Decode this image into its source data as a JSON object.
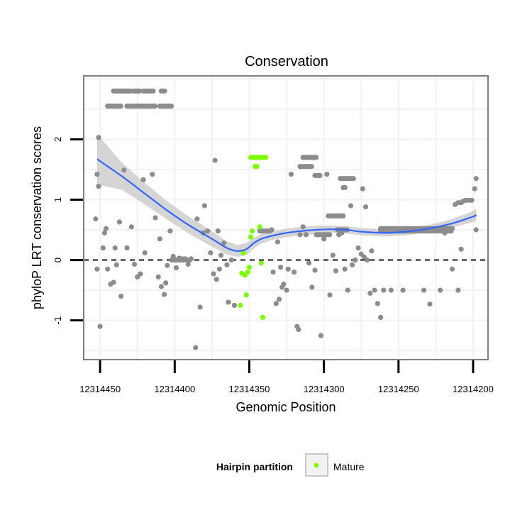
{
  "chart_data": {
    "type": "scatter",
    "title": "Conservation",
    "xlabel": "Genomic Position",
    "ylabel": "phyloP LRT conservation scores",
    "x_reversed": true,
    "xlim": [
      12314461,
      12314190
    ],
    "ylim": [
      -1.65,
      3.05
    ],
    "x_ticks": [
      12314450,
      12314400,
      12314350,
      12314300,
      12314250,
      12314200
    ],
    "x_tick_labels": [
      "12314450",
      "12314400",
      "12314350",
      "12314300",
      "12314250",
      "12314200"
    ],
    "y_ticks": [
      -1,
      0,
      1,
      2
    ],
    "y_tick_labels": [
      "-1",
      "0",
      "1",
      "2"
    ],
    "reference_line_y": 0,
    "legend": {
      "title": "Hairpin partition",
      "position": "bottom",
      "entries": [
        {
          "label": "Mature",
          "color": "#7cfc00"
        }
      ]
    },
    "colors": {
      "other": "#8c8c8c",
      "mature": "#7cfc00",
      "smooth": "#3366ff",
      "band": "#d0d0d0",
      "panel_border": "#7f7f7f",
      "grid": "#f2f2f2"
    },
    "series": [
      {
        "name": "Other",
        "points": [
          [
            12314451,
            2.03
          ],
          [
            12314452,
            1.42
          ],
          [
            12314451,
            1.22
          ],
          [
            12314453,
            0.68
          ],
          [
            12314452,
            -0.15
          ],
          [
            12314450,
            -1.1
          ],
          [
            12314448,
            0.2
          ],
          [
            12314447,
            0.45
          ],
          [
            12314446,
            0.52
          ],
          [
            12314445,
            -0.15
          ],
          [
            12314443,
            -0.4
          ],
          [
            12314441,
            -0.37
          ],
          [
            12314440,
            0.2
          ],
          [
            12314439,
            -0.08
          ],
          [
            12314437,
            0.63
          ],
          [
            12314436,
            -0.6
          ],
          [
            12314434,
            1.49
          ],
          [
            12314432,
            0.2
          ],
          [
            12314429,
            0.55
          ],
          [
            12314427,
            -0.07
          ],
          [
            12314425,
            -0.28
          ],
          [
            12314423,
            -0.23
          ],
          [
            12314421,
            1.33
          ],
          [
            12314420,
            0.12
          ],
          [
            12314415,
            1.42
          ],
          [
            12314413,
            0.7
          ],
          [
            12314411,
            -0.28
          ],
          [
            12314410,
            0.35
          ],
          [
            12314409,
            -0.44
          ],
          [
            12314407,
            -0.57
          ],
          [
            12314406,
            -0.38
          ],
          [
            12314405,
            -0.09
          ],
          [
            12314403,
            0.48
          ],
          [
            12314401,
            0.06
          ],
          [
            12314399,
            -0.13
          ],
          [
            12314397,
            0.03
          ],
          [
            12314395,
            0.02
          ],
          [
            12314393,
            0.02
          ],
          [
            12314391,
            -0.07
          ],
          [
            12314389,
            0.02
          ],
          [
            12314386,
            -1.45
          ],
          [
            12314385,
            0.68
          ],
          [
            12314383,
            -0.78
          ],
          [
            12314381,
            0.45
          ],
          [
            12314380,
            0.9
          ],
          [
            12314378,
            0.48
          ],
          [
            12314376,
            0.12
          ],
          [
            12314374,
            -0.23
          ],
          [
            12314373,
            1.65
          ],
          [
            12314372,
            -0.32
          ],
          [
            12314371,
            0.48
          ],
          [
            12314370,
            -0.15
          ],
          [
            12314369,
            0.08
          ],
          [
            12314367,
            0.28
          ],
          [
            12314365,
            -0.08
          ],
          [
            12314364,
            -0.7
          ],
          [
            12314362,
            0.0
          ],
          [
            12314360,
            -0.75
          ],
          [
            12314335,
            0.5
          ],
          [
            12314334,
            -0.2
          ],
          [
            12314332,
            -0.72
          ],
          [
            12314331,
            0.3
          ],
          [
            12314330,
            -0.65
          ],
          [
            12314329,
            -0.12
          ],
          [
            12314328,
            -0.45
          ],
          [
            12314327,
            -0.4
          ],
          [
            12314325,
            -0.5
          ],
          [
            12314324,
            -0.15
          ],
          [
            12314322,
            1.42
          ],
          [
            12314320,
            -0.2
          ],
          [
            12314318,
            -1.1
          ],
          [
            12314317,
            -1.15
          ],
          [
            12314316,
            0.42
          ],
          [
            12314314,
            0.55
          ],
          [
            12314312,
            0.42
          ],
          [
            12314310,
            -0.05
          ],
          [
            12314308,
            -0.45
          ],
          [
            12314306,
            -0.17
          ],
          [
            12314304,
            0.42
          ],
          [
            12314302,
            -1.25
          ],
          [
            12314300,
            0.35
          ],
          [
            12314298,
            1.42
          ],
          [
            12314296,
            -0.58
          ],
          [
            12314294,
            0.08
          ],
          [
            12314292,
            -0.18
          ],
          [
            12314290,
            0.42
          ],
          [
            12314288,
            0.45
          ],
          [
            12314286,
            -0.15
          ],
          [
            12314284,
            -0.5
          ],
          [
            12314282,
            0.9
          ],
          [
            12314281,
            -0.08
          ],
          [
            12314279,
            0.0
          ],
          [
            12314277,
            0.2
          ],
          [
            12314275,
            0.1
          ],
          [
            12314274,
            1.18
          ],
          [
            12314273,
            0.05
          ],
          [
            12314272,
            0.88
          ],
          [
            12314271,
            0.0
          ],
          [
            12314269,
            -0.55
          ],
          [
            12314268,
            0.15
          ],
          [
            12314266,
            -0.5
          ],
          [
            12314264,
            -0.72
          ],
          [
            12314262,
            -0.95
          ],
          [
            12314260,
            -0.5
          ],
          [
            12314255,
            -0.5
          ],
          [
            12314247,
            -0.5
          ],
          [
            12314233,
            -0.5
          ],
          [
            12314229,
            -0.73
          ],
          [
            12314222,
            -0.5
          ],
          [
            12314214,
            -0.15
          ],
          [
            12314210,
            -0.5
          ],
          [
            12314208,
            0.18
          ],
          [
            12314198,
            0.5
          ],
          [
            12314198,
            1.35
          ],
          [
            12314199,
            1.18
          ],
          [
            12314201,
            0.99
          ],
          [
            12314203,
            0.99
          ],
          [
            12314205,
            0.99
          ],
          [
            12314207,
            0.97
          ],
          [
            12314208,
            0.95
          ],
          [
            12314210,
            0.95
          ],
          [
            12314212,
            0.92
          ],
          [
            12314214,
            0.52
          ],
          [
            12314217,
            0.5
          ],
          [
            12314219,
            0.45
          ]
        ],
        "runs": [
          {
            "y": 2.8,
            "x_from": 12314441,
            "x_to": 12314430,
            "step": 1.1
          },
          {
            "y": 2.8,
            "x_from": 12314428,
            "x_to": 12314423,
            "step": 1.1
          },
          {
            "y": 2.8,
            "x_from": 12314421,
            "x_to": 12314414,
            "step": 1.1
          },
          {
            "y": 2.8,
            "x_from": 12314409,
            "x_to": 12314406,
            "step": 1.1
          },
          {
            "y": 2.55,
            "x_from": 12314445,
            "x_to": 12314436,
            "step": 1.1
          },
          {
            "y": 2.55,
            "x_from": 12314432,
            "x_to": 12314413,
            "step": 1.1
          },
          {
            "y": 2.55,
            "x_from": 12314410,
            "x_to": 12314402,
            "step": 1.1
          },
          {
            "y": 1.7,
            "x_from": 12314314,
            "x_to": 12314305,
            "step": 1.1
          },
          {
            "y": 1.55,
            "x_from": 12314316,
            "x_to": 12314308,
            "step": 1.1
          },
          {
            "y": 1.4,
            "x_from": 12314306,
            "x_to": 12314302,
            "step": 1.1
          },
          {
            "y": 1.35,
            "x_from": 12314289,
            "x_to": 12314280,
            "step": 1.1
          },
          {
            "y": 1.2,
            "x_from": 12314287,
            "x_to": 12314285,
            "step": 1.1
          },
          {
            "y": 0.73,
            "x_from": 12314297,
            "x_to": 12314287,
            "step": 1.1
          },
          {
            "y": 0.5,
            "x_from": 12314291,
            "x_to": 12314284,
            "step": 1.1
          },
          {
            "y": 0.42,
            "x_from": 12314305,
            "x_to": 12314296,
            "step": 1.1
          },
          {
            "y": 0.52,
            "x_from": 12314262,
            "x_to": 12314214,
            "step": 1.1
          },
          {
            "y": 0.48,
            "x_from": 12314262,
            "x_to": 12314214,
            "step": 1.1
          },
          {
            "y": 0.48,
            "x_from": 12314343,
            "x_to": 12314336,
            "step": 1.1
          },
          {
            "y": 0.0,
            "x_from": 12314402,
            "x_to": 12314389,
            "step": 1.1
          }
        ]
      },
      {
        "name": "Mature",
        "points": [
          [
            12314354,
            0.12
          ],
          [
            12314353,
            -0.25
          ],
          [
            12314352,
            -0.58
          ],
          [
            12314351,
            -0.2
          ],
          [
            12314350,
            -0.12
          ],
          [
            12314349,
            0.38
          ],
          [
            12314348,
            0.48
          ],
          [
            12314346,
            1.55
          ],
          [
            12314345,
            1.55
          ],
          [
            12314343,
            0.55
          ],
          [
            12314342,
            -0.05
          ],
          [
            12314341,
            -0.95
          ],
          [
            12314355,
            -0.22
          ],
          [
            12314356,
            -0.75
          ]
        ],
        "runs": [
          {
            "y": 1.7,
            "x_from": 12314349,
            "x_to": 12314339,
            "step": 1.1
          }
        ]
      }
    ],
    "smooth_line": {
      "x": [
        12314452,
        12314435,
        12314420,
        12314405,
        12314390,
        12314375,
        12314365,
        12314358,
        12314352,
        12314347,
        12314342,
        12314335,
        12314325,
        12314315,
        12314305,
        12314295,
        12314285,
        12314275,
        12314260,
        12314245,
        12314230,
        12314215,
        12314200,
        12314198
      ],
      "y": [
        1.67,
        1.38,
        1.1,
        0.82,
        0.57,
        0.35,
        0.2,
        0.15,
        0.18,
        0.28,
        0.35,
        0.4,
        0.45,
        0.48,
        0.5,
        0.51,
        0.5,
        0.47,
        0.45,
        0.47,
        0.52,
        0.6,
        0.72,
        0.75
      ],
      "band_halfwidth": [
        0.42,
        0.22,
        0.18,
        0.15,
        0.14,
        0.13,
        0.11,
        0.1,
        0.1,
        0.09,
        0.08,
        0.07,
        0.07,
        0.07,
        0.07,
        0.06,
        0.06,
        0.06,
        0.06,
        0.06,
        0.06,
        0.07,
        0.09,
        0.11
      ]
    }
  }
}
